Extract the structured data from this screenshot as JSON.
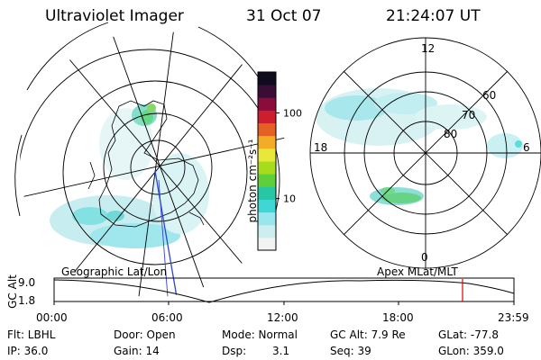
{
  "header": {
    "instrument": "Ultraviolet Imager",
    "date": "31 Oct 07",
    "time": "21:24:07 UT"
  },
  "colorbar": {
    "unit_label": "photon cm⁻²s⁻¹",
    "ticks": [
      {
        "value": 10,
        "label": "10"
      },
      {
        "value": 100,
        "label": "100"
      }
    ],
    "range": [
      2.5,
      300
    ],
    "colors": [
      "#f2f2f2",
      "#cceeee",
      "#99e6ee",
      "#3fd7d5",
      "#27c7a4",
      "#5ecf3b",
      "#a6dd1b",
      "#e8e83a",
      "#f2ac25",
      "#e56025",
      "#cc1e2c",
      "#8b0c3a",
      "#3a0d37",
      "#100c20"
    ]
  },
  "geographic_panel": {
    "caption": "Geographic Lat/Lon"
  },
  "magnetic_panel": {
    "caption": "Apex MLat/MLT",
    "mlt_labels": [
      "12",
      "18",
      "6",
      "0"
    ],
    "mlat_labels": [
      "60",
      "70",
      "80"
    ]
  },
  "altitude_strip": {
    "axis_label": "GC Alt",
    "y_ticks": [
      "9.0",
      "1.8"
    ],
    "x_ticks": [
      "00:00",
      "06:00",
      "12:00",
      "18:00",
      "23:59"
    ],
    "current_time_marker_color": "#e00000"
  },
  "info": {
    "filter": "Flt: LBHL",
    "ip": "IP: 36.0",
    "door": "Door: Open",
    "gain": "Gain: 14",
    "mode": "Mode: Normal",
    "dsp": "Dsp:",
    "dsp_value": "3.1",
    "gc_alt": "GC Alt: 7.9 Re",
    "seq": "Seq: 39",
    "glat": "GLat: -77.8",
    "glon": "GLon: 359.0"
  }
}
